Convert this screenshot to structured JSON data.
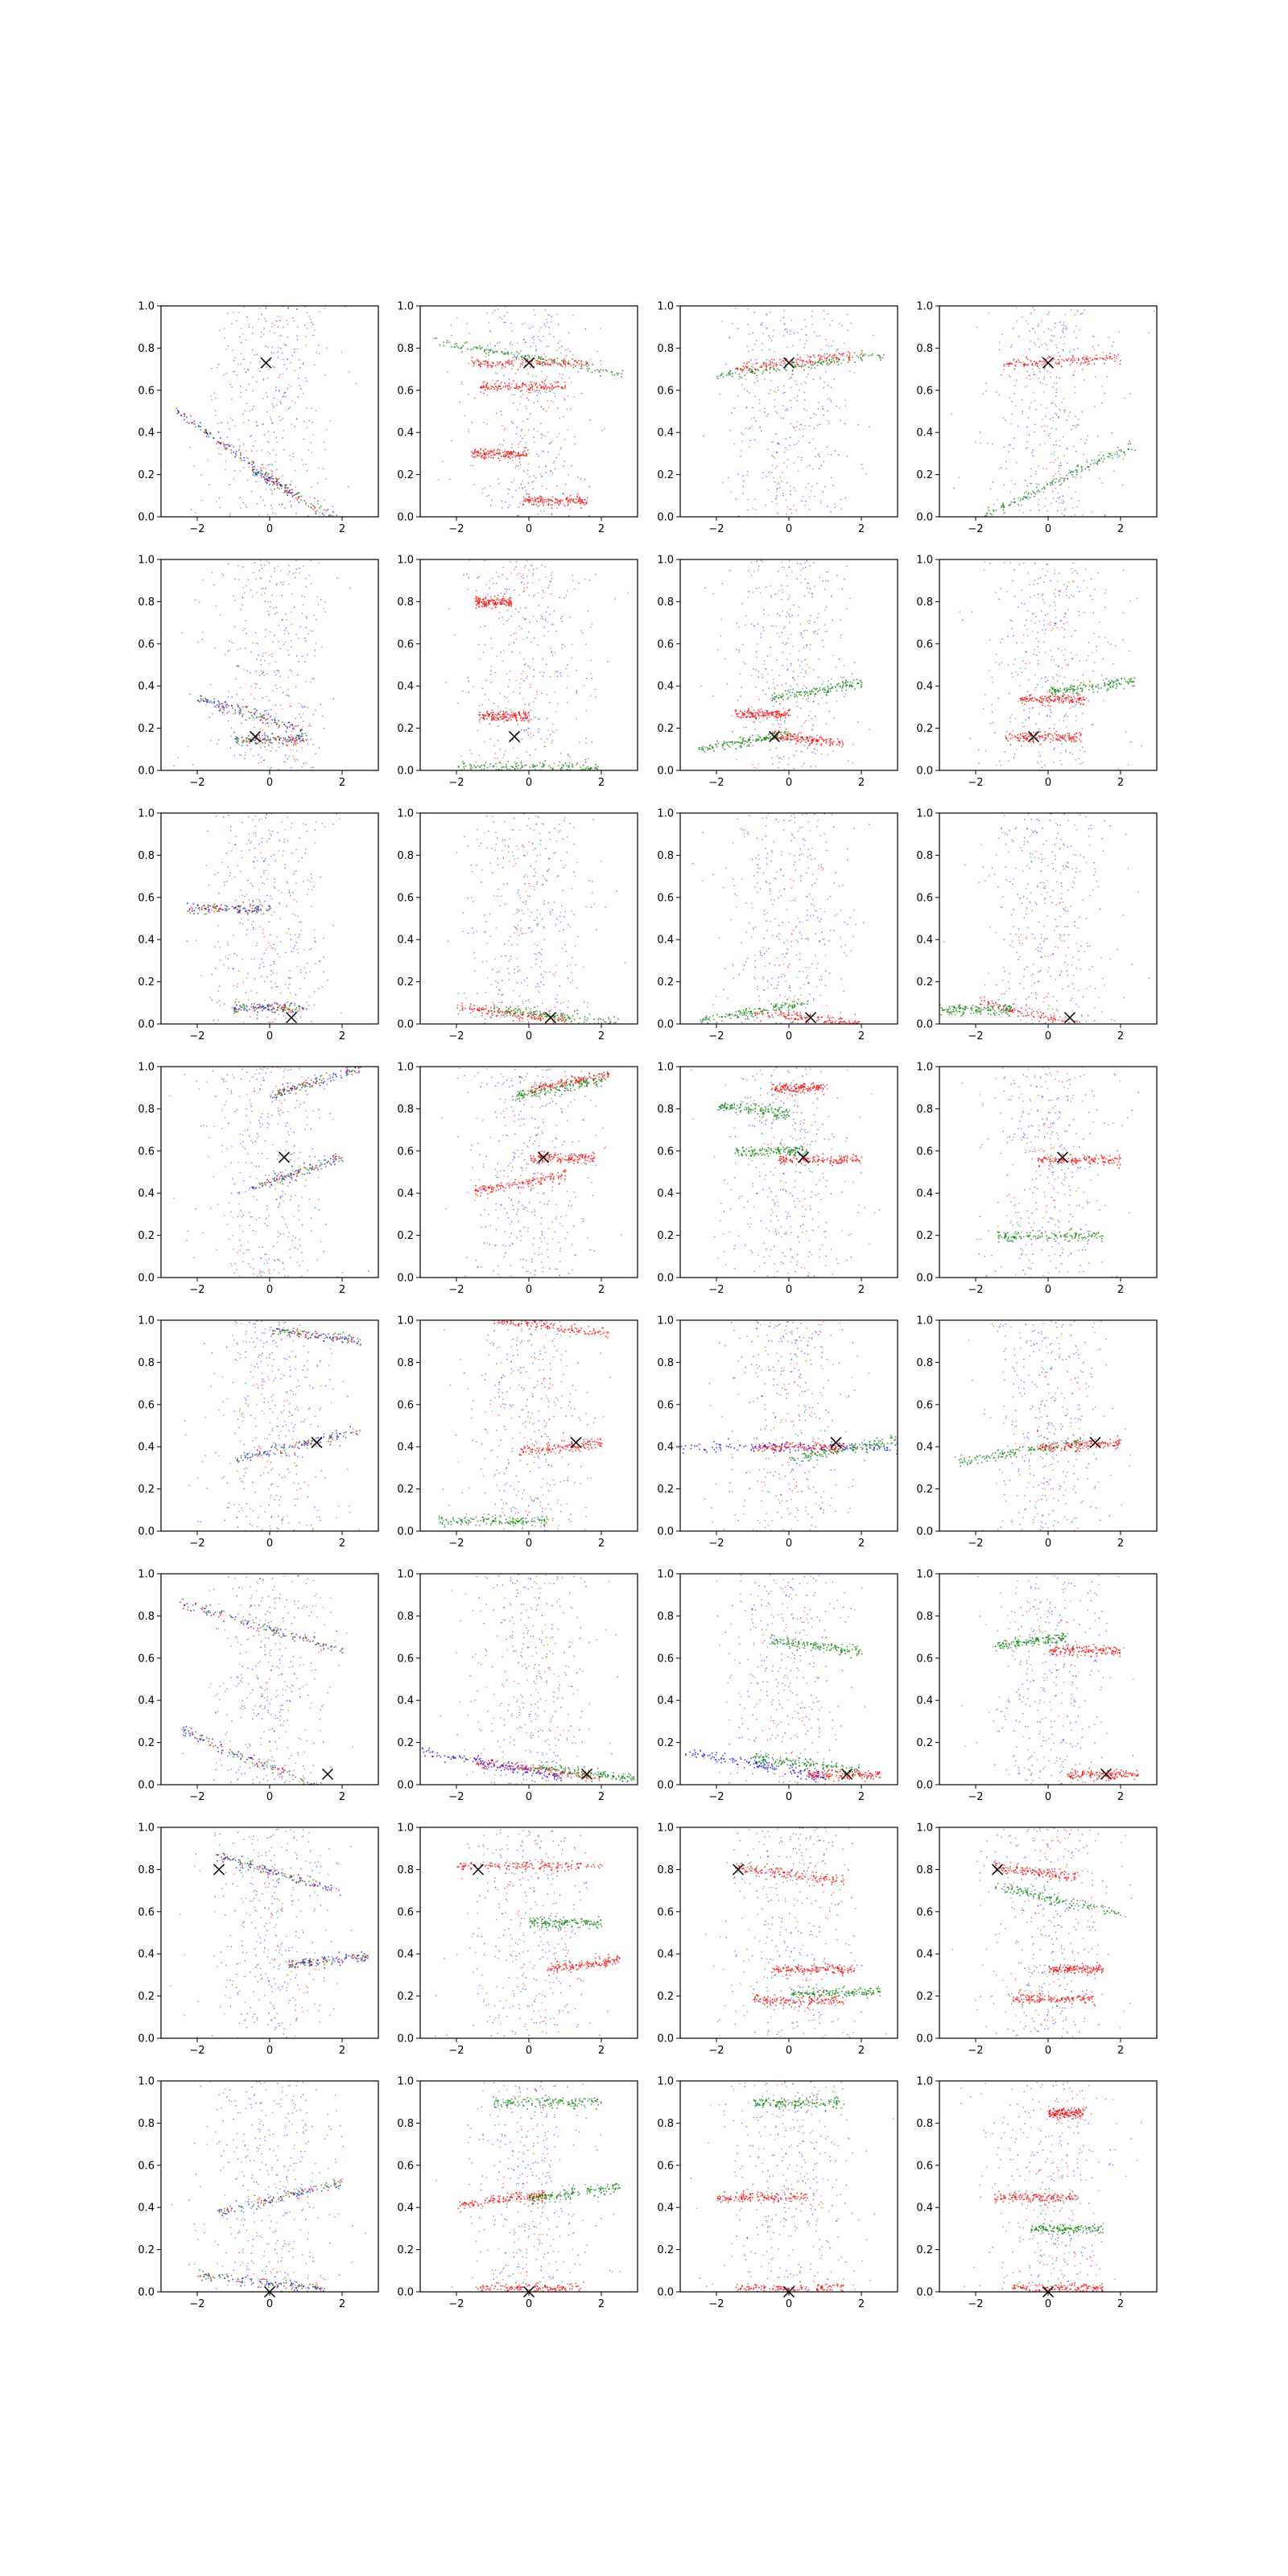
{
  "figure": {
    "rows": 8,
    "cols": 4,
    "series_colors": {
      "blue": "#0000ff",
      "red": "#ff0000",
      "green": "#008000"
    },
    "marker_color": "#000000"
  },
  "chart_data": {
    "type": "scatter",
    "layout": "grid 8x4",
    "xlim": [
      -3,
      3
    ],
    "ylim": [
      0,
      1
    ],
    "xticks": [
      -2,
      0,
      2
    ],
    "yticks": [
      0.0,
      0.2,
      0.4,
      0.6,
      0.8,
      1.0
    ],
    "xtick_labels": [
      "−2",
      "0",
      "2"
    ],
    "ytick_labels": [
      "0.0",
      "0.2",
      "0.4",
      "0.6",
      "0.8",
      "1.0"
    ],
    "series": [
      {
        "name": "blue",
        "color": "#0000ff"
      },
      {
        "name": "red",
        "color": "#ff0000"
      },
      {
        "name": "green",
        "color": "#008000"
      }
    ],
    "marker": "x",
    "description_note": "Each panel: dense stochastic point clouds; bands listed as [y_center, x_min, x_max, tilt] approximations read from gridlines.",
    "panels": [
      {
        "row": 0,
        "col": 0,
        "x_marker": [
          -0.1,
          0.73
        ],
        "bands": {
          "mixed": [
            [
              0.3,
              -2.6,
              0.8,
              -0.12
            ],
            [
              0.08,
              -0.5,
              2.4,
              -0.1
            ]
          ]
        }
      },
      {
        "row": 0,
        "col": 1,
        "x_marker": [
          0.0,
          0.73
        ],
        "bands": {
          "green": [
            [
              0.76,
              -2.7,
              2.6,
              -0.03
            ]
          ],
          "red": [
            [
              0.73,
              -1.6,
              1.6,
              0.0
            ],
            [
              0.62,
              -1.4,
              1.0,
              0.0
            ],
            [
              0.3,
              -1.6,
              0.0,
              0.0
            ],
            [
              0.08,
              -0.2,
              1.6,
              0.0
            ]
          ]
        }
      },
      {
        "row": 0,
        "col": 2,
        "x_marker": [
          0.0,
          0.73
        ],
        "bands": {
          "green": [
            [
              0.72,
              -2.0,
              2.6,
              0.02
            ]
          ],
          "red": [
            [
              0.74,
              -1.5,
              2.0,
              0.02
            ]
          ]
        }
      },
      {
        "row": 0,
        "col": 3,
        "x_marker": [
          0.0,
          0.73
        ],
        "bands": {
          "red": [
            [
              0.74,
              -1.3,
              2.0,
              0.01
            ]
          ],
          "green": [
            [
              0.17,
              -2.0,
              2.4,
              0.08
            ]
          ]
        }
      },
      {
        "row": 1,
        "col": 0,
        "x_marker": [
          -0.4,
          0.16
        ],
        "bands": {
          "mixed": [
            [
              0.27,
              -2.0,
              1.0,
              -0.05
            ],
            [
              0.15,
              -1.0,
              1.0,
              0.0
            ]
          ]
        }
      },
      {
        "row": 1,
        "col": 1,
        "x_marker": [
          -0.4,
          0.16
        ],
        "bands": {
          "red": [
            [
              0.8,
              -1.5,
              -0.5,
              0.0
            ],
            [
              0.26,
              -1.4,
              0.0,
              0.0
            ]
          ],
          "green": [
            [
              0.02,
              -2.0,
              2.0,
              0.0
            ]
          ]
        }
      },
      {
        "row": 1,
        "col": 2,
        "x_marker": [
          -0.4,
          0.16
        ],
        "bands": {
          "green": [
            [
              0.14,
              -2.5,
              0.0,
              0.03
            ],
            [
              0.38,
              -0.5,
              2.0,
              0.03
            ]
          ],
          "red": [
            [
              0.15,
              -0.5,
              1.5,
              -0.02
            ],
            [
              0.27,
              -1.5,
              0.0,
              0.0
            ]
          ]
        }
      },
      {
        "row": 1,
        "col": 3,
        "x_marker": [
          -0.4,
          0.16
        ],
        "bands": {
          "red": [
            [
              0.16,
              -1.2,
              0.9,
              0.0
            ],
            [
              0.34,
              -0.8,
              1.0,
              0.0
            ]
          ],
          "green": [
            [
              0.4,
              0.0,
              2.4,
              0.02
            ]
          ]
        }
      },
      {
        "row": 2,
        "col": 0,
        "x_marker": [
          0.6,
          0.03
        ],
        "bands": {
          "mixed": [
            [
              0.55,
              -2.3,
              0.0,
              0.0
            ],
            [
              0.08,
              -1.0,
              1.0,
              0.0
            ]
          ]
        }
      },
      {
        "row": 2,
        "col": 1,
        "x_marker": [
          0.6,
          0.03
        ],
        "bands": {
          "red": [
            [
              0.05,
              -2.0,
              1.0,
              -0.02
            ]
          ],
          "green": [
            [
              0.04,
              -1.0,
              2.5,
              -0.02
            ]
          ]
        }
      },
      {
        "row": 2,
        "col": 2,
        "x_marker": [
          0.6,
          0.03
        ],
        "bands": {
          "green": [
            [
              0.06,
              -2.5,
              0.5,
              0.03
            ]
          ],
          "red": [
            [
              0.03,
              -1.0,
              2.0,
              -0.02
            ]
          ]
        }
      },
      {
        "row": 2,
        "col": 3,
        "x_marker": [
          0.6,
          0.03
        ],
        "bands": {
          "green": [
            [
              0.07,
              -3.0,
              -1.0,
              0.0
            ]
          ],
          "red": [
            [
              0.03,
              -2.0,
              2.0,
              -0.04
            ]
          ]
        }
      },
      {
        "row": 3,
        "col": 0,
        "x_marker": [
          0.4,
          0.57
        ],
        "bands": {
          "mixed": [
            [
              0.93,
              0.0,
              2.5,
              0.05
            ],
            [
              0.5,
              -0.5,
              2.0,
              0.06
            ]
          ]
        }
      },
      {
        "row": 3,
        "col": 1,
        "x_marker": [
          0.4,
          0.57
        ],
        "bands": {
          "red": [
            [
              0.93,
              0.0,
              2.2,
              0.03
            ],
            [
              0.57,
              0.0,
              1.8,
              0.0
            ],
            [
              0.45,
              -1.5,
              1.0,
              0.03
            ]
          ],
          "green": [
            [
              0.9,
              -0.5,
              2.0,
              0.03
            ]
          ]
        }
      },
      {
        "row": 3,
        "col": 2,
        "x_marker": [
          0.4,
          0.57
        ],
        "bands": {
          "green": [
            [
              0.8,
              -2.0,
              0.0,
              -0.02
            ],
            [
              0.6,
              -1.5,
              0.5,
              0.0
            ]
          ],
          "red": [
            [
              0.56,
              -0.3,
              2.0,
              0.0
            ],
            [
              0.9,
              -0.5,
              1.0,
              0.0
            ]
          ]
        }
      },
      {
        "row": 3,
        "col": 3,
        "x_marker": [
          0.4,
          0.57
        ],
        "bands": {
          "red": [
            [
              0.56,
              -0.3,
              2.0,
              0.0
            ]
          ],
          "green": [
            [
              0.2,
              -1.5,
              1.5,
              0.0
            ]
          ]
        }
      },
      {
        "row": 4,
        "col": 0,
        "x_marker": [
          1.3,
          0.42
        ],
        "bands": {
          "mixed": [
            [
              0.93,
              0.0,
              2.5,
              -0.02
            ],
            [
              0.41,
              -1.0,
              2.5,
              0.04
            ]
          ]
        }
      },
      {
        "row": 4,
        "col": 1,
        "x_marker": [
          1.3,
          0.42
        ],
        "bands": {
          "red": [
            [
              0.97,
              -1.0,
              2.2,
              -0.02
            ],
            [
              0.4,
              -0.3,
              2.0,
              0.02
            ]
          ],
          "green": [
            [
              0.05,
              -2.5,
              0.5,
              0.0
            ]
          ]
        }
      },
      {
        "row": 4,
        "col": 2,
        "x_marker": [
          1.3,
          0.42
        ],
        "bands": {
          "blue": [
            [
              0.4,
              -3.0,
              3.0,
              0.0
            ]
          ],
          "green": [
            [
              0.39,
              0.0,
              3.0,
              0.03
            ]
          ],
          "red": [
            [
              0.4,
              -1.0,
              1.5,
              0.0
            ]
          ]
        }
      },
      {
        "row": 4,
        "col": 3,
        "x_marker": [
          1.3,
          0.42
        ],
        "bands": {
          "green": [
            [
              0.38,
              -2.5,
              1.0,
              0.03
            ]
          ],
          "red": [
            [
              0.41,
              -0.3,
              2.0,
              0.01
            ]
          ]
        }
      },
      {
        "row": 5,
        "col": 0,
        "x_marker": [
          1.6,
          0.05
        ],
        "bands": {
          "mixed": [
            [
              0.75,
              -2.5,
              2.0,
              -0.05
            ],
            [
              0.12,
              -2.5,
              1.5,
              -0.07
            ]
          ]
        }
      },
      {
        "row": 5,
        "col": 1,
        "x_marker": [
          1.6,
          0.05
        ],
        "bands": {
          "blue": [
            [
              0.1,
              -3.0,
              1.0,
              -0.03
            ]
          ],
          "red": [
            [
              0.07,
              -1.5,
              2.0,
              -0.02
            ]
          ],
          "green": [
            [
              0.06,
              0.0,
              3.0,
              -0.02
            ]
          ]
        }
      },
      {
        "row": 5,
        "col": 2,
        "x_marker": [
          1.6,
          0.05
        ],
        "bands": {
          "green": [
            [
              0.66,
              -0.5,
              2.0,
              -0.02
            ],
            [
              0.1,
              -1.0,
              2.0,
              -0.02
            ]
          ],
          "blue": [
            [
              0.1,
              -3.0,
              1.0,
              -0.03
            ]
          ],
          "red": [
            [
              0.05,
              0.5,
              2.5,
              0.0
            ]
          ]
        }
      },
      {
        "row": 5,
        "col": 3,
        "x_marker": [
          1.6,
          0.05
        ],
        "bands": {
          "red": [
            [
              0.05,
              0.5,
              2.5,
              0.0
            ],
            [
              0.64,
              0.0,
              2.0,
              0.0
            ]
          ],
          "green": [
            [
              0.68,
              -1.5,
              0.5,
              0.02
            ]
          ]
        }
      },
      {
        "row": 6,
        "col": 0,
        "x_marker": [
          -1.4,
          0.8
        ],
        "bands": {
          "mixed": [
            [
              0.78,
              -1.5,
              2.0,
              -0.05
            ],
            [
              0.37,
              0.5,
              2.7,
              0.02
            ]
          ]
        }
      },
      {
        "row": 6,
        "col": 1,
        "x_marker": [
          -1.4,
          0.8
        ],
        "bands": {
          "red": [
            [
              0.82,
              -2.0,
              2.0,
              0.0
            ],
            [
              0.35,
              0.5,
              2.5,
              0.02
            ]
          ],
          "green": [
            [
              0.55,
              0.0,
              2.0,
              0.0
            ]
          ]
        }
      },
      {
        "row": 6,
        "col": 2,
        "x_marker": [
          -1.4,
          0.8
        ],
        "bands": {
          "red": [
            [
              0.78,
              -1.5,
              1.5,
              -0.02
            ],
            [
              0.33,
              -0.5,
              1.8,
              0.0
            ],
            [
              0.18,
              -1.0,
              1.5,
              0.0
            ]
          ],
          "green": [
            [
              0.22,
              0.0,
              2.5,
              0.0
            ]
          ]
        }
      },
      {
        "row": 6,
        "col": 3,
        "x_marker": [
          -1.4,
          0.8
        ],
        "bands": {
          "red": [
            [
              0.79,
              -1.5,
              0.8,
              -0.02
            ],
            [
              0.33,
              0.0,
              1.5,
              0.0
            ],
            [
              0.19,
              -1.0,
              1.3,
              0.0
            ]
          ],
          "green": [
            [
              0.66,
              -1.5,
              2.0,
              -0.04
            ]
          ]
        }
      },
      {
        "row": 7,
        "col": 0,
        "x_marker": [
          0.0,
          0.0
        ],
        "bands": {
          "mixed": [
            [
              0.45,
              -1.5,
              2.0,
              0.04
            ],
            [
              0.05,
              -2.0,
              1.5,
              -0.02
            ]
          ]
        }
      },
      {
        "row": 7,
        "col": 1,
        "x_marker": [
          0.0,
          0.0
        ],
        "bands": {
          "red": [
            [
              0.44,
              -2.0,
              0.5,
              0.02
            ],
            [
              0.02,
              -1.5,
              1.5,
              0.0
            ]
          ],
          "green": [
            [
              0.47,
              0.0,
              2.5,
              0.02
            ],
            [
              0.9,
              -1.0,
              2.0,
              0.0
            ]
          ]
        }
      },
      {
        "row": 7,
        "col": 2,
        "x_marker": [
          0.0,
          0.0
        ],
        "bands": {
          "red": [
            [
              0.45,
              -2.0,
              0.5,
              0.0
            ],
            [
              0.02,
              -1.5,
              1.5,
              0.0
            ]
          ],
          "green": [
            [
              0.9,
              -1.0,
              1.5,
              0.0
            ]
          ]
        }
      },
      {
        "row": 7,
        "col": 3,
        "x_marker": [
          0.0,
          0.0
        ],
        "bands": {
          "red": [
            [
              0.45,
              -1.5,
              0.8,
              0.0
            ],
            [
              0.02,
              -1.0,
              1.5,
              0.0
            ],
            [
              0.85,
              0.0,
              1.0,
              0.0
            ]
          ],
          "green": [
            [
              0.3,
              -0.5,
              1.5,
              0.0
            ]
          ]
        }
      }
    ]
  }
}
